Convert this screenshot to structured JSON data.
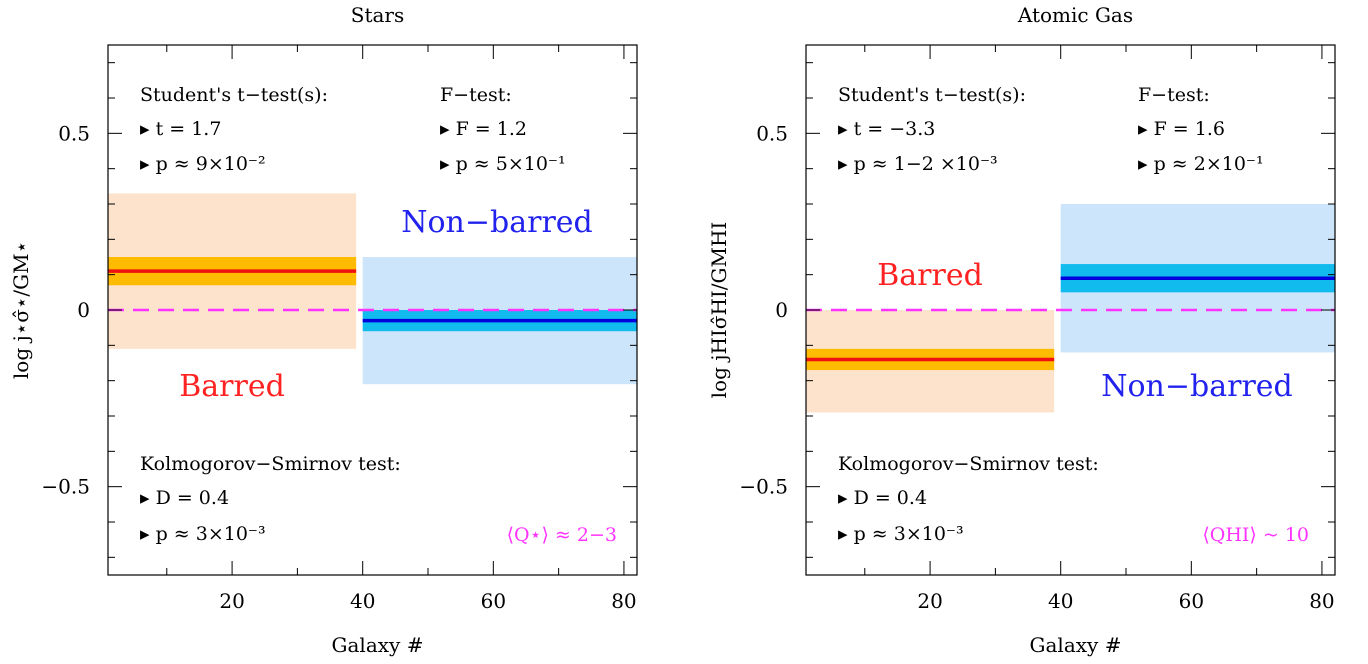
{
  "chart_data": [
    {
      "type": "bar",
      "title": "Stars",
      "xlabel": "Galaxy #",
      "ylabel": "log j⋆σ̂⋆/GM⋆",
      "xlim": [
        1,
        82
      ],
      "ylim": [
        -0.75,
        0.75
      ],
      "xticks": [
        "20",
        "40",
        "60",
        "80"
      ],
      "yticks": [
        "0.5",
        "0",
        "−0.5"
      ],
      "reference_line": 0,
      "reference_color": "#ff33ff",
      "groups": [
        {
          "name": "Barred",
          "label_color": "#ff2222",
          "x_range": [
            1,
            39
          ],
          "mean": 0.11,
          "se_range": [
            0.07,
            0.15
          ],
          "sd_range": [
            -0.11,
            0.33
          ],
          "line_color": "#ee1111",
          "inner_color": "#ffbb00",
          "outer_color": "#fde3cc"
        },
        {
          "name": "Non−barred",
          "label_color": "#2222ee",
          "x_range": [
            40,
            82
          ],
          "mean": -0.03,
          "se_range": [
            -0.06,
            0.0
          ],
          "sd_range": [
            -0.21,
            0.15
          ],
          "line_color": "#0000dd",
          "inner_color": "#11bbee",
          "outer_color": "#cce5fa"
        }
      ],
      "stats": {
        "t_header": "Student's t−test(s):",
        "t_line1": "t = 1.7",
        "t_line2": "p ≈ 9×10⁻²",
        "f_header": "F−test:",
        "f_line1": "F = 1.2",
        "f_line2": "p ≈ 5×10⁻¹",
        "ks_header": "Kolmogorov−Smirnov test:",
        "ks_line1": "D = 0.4",
        "ks_line2": "p ≈ 3×10⁻³",
        "q_note": "⟨Q⋆⟩ ≈ 2−3"
      }
    },
    {
      "type": "bar",
      "title": "Atomic Gas",
      "xlabel": "Galaxy #",
      "ylabel": "log jHIσ̂HI/GMHI",
      "xlim": [
        1,
        82
      ],
      "ylim": [
        -0.75,
        0.75
      ],
      "xticks": [
        "20",
        "40",
        "60",
        "80"
      ],
      "yticks": [
        "0.5",
        "0",
        "−0.5"
      ],
      "reference_line": 0,
      "reference_color": "#ff33ff",
      "groups": [
        {
          "name": "Barred",
          "label_color": "#ff2222",
          "x_range": [
            1,
            39
          ],
          "mean": -0.14,
          "se_range": [
            -0.17,
            -0.11
          ],
          "sd_range": [
            -0.29,
            0.0
          ],
          "line_color": "#ee1111",
          "inner_color": "#ffbb00",
          "outer_color": "#fde3cc"
        },
        {
          "name": "Non−barred",
          "label_color": "#2222ee",
          "x_range": [
            40,
            82
          ],
          "mean": 0.09,
          "se_range": [
            0.05,
            0.13
          ],
          "sd_range": [
            -0.12,
            0.3
          ],
          "line_color": "#0000dd",
          "inner_color": "#11bbee",
          "outer_color": "#cce5fa"
        }
      ],
      "stats": {
        "t_header": "Student's t−test(s):",
        "t_line1": "t = −3.3",
        "t_line2": "p ≈ 1−2 ×10⁻³",
        "f_header": "F−test:",
        "f_line1": "F = 1.6",
        "f_line2": "p ≈ 2×10⁻¹",
        "ks_header": "Kolmogorov−Smirnov test:",
        "ks_line1": "D = 0.4",
        "ks_line2": "p ≈ 3×10⁻³",
        "q_note": "⟨QHI⟩ ~ 10"
      }
    }
  ]
}
